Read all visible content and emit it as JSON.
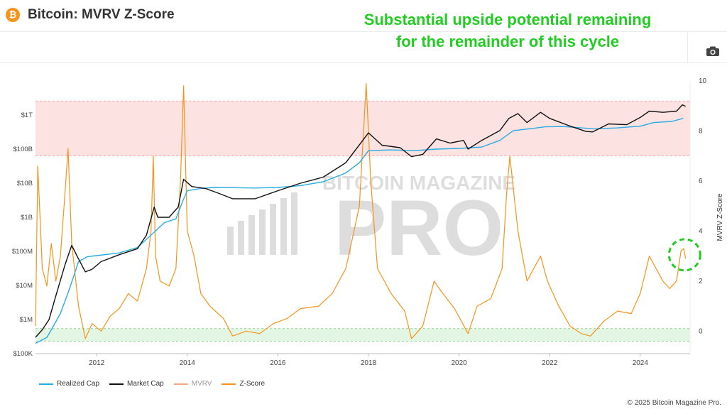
{
  "header": {
    "icon": "bitcoin-icon",
    "icon_glyph": "₿",
    "title": "Bitcoin: MVRV Z-Score"
  },
  "annotation": {
    "line1": "Substantial upside potential remaining",
    "line2": "for the remainder of this cycle",
    "color": "#22cc22"
  },
  "toolbar": {
    "camera_icon": "camera-icon"
  },
  "watermark": {
    "line1": "BITCOIN MAGAZINE",
    "line2": "PRO"
  },
  "chart_data": {
    "type": "line",
    "title": "Bitcoin: MVRV Z-Score",
    "xlabel": "",
    "ylabel_left": "",
    "ylabel_right": "MVRV Z-Score",
    "left_axis": {
      "scale": "log",
      "range": [
        100000,
        10000000000000
      ],
      "ticks": [
        "$100K",
        "$1M",
        "$10M",
        "$100M",
        "$1B",
        "$10B",
        "$100B",
        "$1T"
      ]
    },
    "right_axis": {
      "range": [
        -0.9,
        10
      ],
      "ticks": [
        0,
        2,
        4,
        6,
        8,
        10
      ]
    },
    "x_axis": {
      "range": [
        2010.65,
        2025.1
      ],
      "ticks": [
        "2012",
        "2014",
        "2016",
        "2018",
        "2020",
        "2022",
        "2024"
      ]
    },
    "bands": [
      {
        "name": "overvalued",
        "axis": "right",
        "from": 7,
        "to": 9.2,
        "color": "#fde2e2",
        "border": "#f08080"
      },
      {
        "name": "undervalued",
        "axis": "right",
        "from": -0.4,
        "to": 0.1,
        "color": "#e3f6e3",
        "border": "#66cc66"
      }
    ],
    "series": [
      {
        "name": "Realized Cap",
        "color": "#29abe2",
        "axis": "left",
        "points": [
          [
            2010.65,
            200000
          ],
          [
            2010.9,
            300000
          ],
          [
            2011.0,
            500000
          ],
          [
            2011.2,
            1500000
          ],
          [
            2011.4,
            8000000
          ],
          [
            2011.6,
            50000000
          ],
          [
            2011.8,
            70000000
          ],
          [
            2012.0,
            75000000
          ],
          [
            2012.5,
            90000000
          ],
          [
            2012.9,
            130000000
          ],
          [
            2013.2,
            300000000
          ],
          [
            2013.5,
            700000000
          ],
          [
            2013.75,
            900000000
          ],
          [
            2013.9,
            3000000000
          ],
          [
            2014.0,
            6000000000
          ],
          [
            2014.3,
            7000000000
          ],
          [
            2014.6,
            7500000000
          ],
          [
            2015.0,
            7400000000
          ],
          [
            2015.5,
            7200000000
          ],
          [
            2016.0,
            7500000000
          ],
          [
            2016.5,
            8500000000
          ],
          [
            2017.0,
            11000000000
          ],
          [
            2017.5,
            20000000000
          ],
          [
            2017.8,
            40000000000
          ],
          [
            2018.0,
            90000000000
          ],
          [
            2018.5,
            95000000000
          ],
          [
            2019.0,
            90000000000
          ],
          [
            2019.5,
            100000000000
          ],
          [
            2020.0,
            105000000000
          ],
          [
            2020.5,
            115000000000
          ],
          [
            2020.9,
            180000000000
          ],
          [
            2021.2,
            350000000000
          ],
          [
            2021.6,
            400000000000
          ],
          [
            2021.9,
            450000000000
          ],
          [
            2022.3,
            460000000000
          ],
          [
            2022.7,
            420000000000
          ],
          [
            2023.0,
            390000000000
          ],
          [
            2023.5,
            420000000000
          ],
          [
            2024.0,
            470000000000
          ],
          [
            2024.3,
            600000000000
          ],
          [
            2024.7,
            650000000000
          ],
          [
            2024.95,
            800000000000
          ]
        ]
      },
      {
        "name": "Market Cap",
        "color": "#111111",
        "axis": "left",
        "points": [
          [
            2010.65,
            300000
          ],
          [
            2010.8,
            500000
          ],
          [
            2010.95,
            1000000
          ],
          [
            2011.1,
            5000000
          ],
          [
            2011.3,
            40000000
          ],
          [
            2011.45,
            150000000
          ],
          [
            2011.6,
            60000000
          ],
          [
            2011.75,
            25000000
          ],
          [
            2011.9,
            30000000
          ],
          [
            2012.1,
            50000000
          ],
          [
            2012.5,
            80000000
          ],
          [
            2012.9,
            120000000
          ],
          [
            2013.1,
            300000000
          ],
          [
            2013.27,
            2000000000
          ],
          [
            2013.35,
            1000000000
          ],
          [
            2013.6,
            1000000000
          ],
          [
            2013.8,
            2000000000
          ],
          [
            2013.92,
            13000000000
          ],
          [
            2014.1,
            8000000000
          ],
          [
            2014.4,
            7000000000
          ],
          [
            2014.7,
            5000000000
          ],
          [
            2015.0,
            3500000000
          ],
          [
            2015.5,
            3500000000
          ],
          [
            2016.0,
            6000000000
          ],
          [
            2016.5,
            10000000000
          ],
          [
            2017.0,
            15000000000
          ],
          [
            2017.5,
            40000000000
          ],
          [
            2017.9,
            200000000000
          ],
          [
            2018.0,
            300000000000
          ],
          [
            2018.3,
            130000000000
          ],
          [
            2018.7,
            110000000000
          ],
          [
            2018.95,
            60000000000
          ],
          [
            2019.2,
            70000000000
          ],
          [
            2019.5,
            200000000000
          ],
          [
            2019.8,
            150000000000
          ],
          [
            2020.1,
            180000000000
          ],
          [
            2020.2,
            100000000000
          ],
          [
            2020.5,
            180000000000
          ],
          [
            2020.9,
            350000000000
          ],
          [
            2021.1,
            800000000000
          ],
          [
            2021.3,
            1100000000000
          ],
          [
            2021.5,
            600000000000
          ],
          [
            2021.8,
            1200000000000
          ],
          [
            2022.0,
            800000000000
          ],
          [
            2022.4,
            500000000000
          ],
          [
            2022.8,
            330000000000
          ],
          [
            2022.95,
            320000000000
          ],
          [
            2023.3,
            550000000000
          ],
          [
            2023.7,
            520000000000
          ],
          [
            2024.0,
            850000000000
          ],
          [
            2024.2,
            1300000000000
          ],
          [
            2024.5,
            1200000000000
          ],
          [
            2024.8,
            1300000000000
          ],
          [
            2024.93,
            2000000000000
          ],
          [
            2025.0,
            1800000000000
          ]
        ]
      },
      {
        "name": "MVRV",
        "color": "#f4a582",
        "axis": "left",
        "points": []
      },
      {
        "name": "Z-Score",
        "color": "#f7931a",
        "axis": "right",
        "points": [
          [
            2010.65,
            0.2
          ],
          [
            2010.7,
            6.6
          ],
          [
            2010.8,
            2.5
          ],
          [
            2010.9,
            1.8
          ],
          [
            2011.0,
            3.5
          ],
          [
            2011.1,
            2.0
          ],
          [
            2011.2,
            3.0
          ],
          [
            2011.3,
            5.5
          ],
          [
            2011.37,
            7.3
          ],
          [
            2011.45,
            3.5
          ],
          [
            2011.6,
            1.0
          ],
          [
            2011.75,
            -0.3
          ],
          [
            2011.9,
            0.3
          ],
          [
            2012.1,
            0.0
          ],
          [
            2012.3,
            0.6
          ],
          [
            2012.5,
            0.9
          ],
          [
            2012.7,
            1.5
          ],
          [
            2012.9,
            1.2
          ],
          [
            2013.1,
            2.5
          ],
          [
            2013.2,
            4.0
          ],
          [
            2013.25,
            7.0
          ],
          [
            2013.3,
            3.0
          ],
          [
            2013.4,
            2.0
          ],
          [
            2013.6,
            1.8
          ],
          [
            2013.75,
            2.5
          ],
          [
            2013.85,
            6.0
          ],
          [
            2013.92,
            9.8
          ],
          [
            2014.0,
            4.0
          ],
          [
            2014.15,
            3.0
          ],
          [
            2014.3,
            1.5
          ],
          [
            2014.5,
            1.0
          ],
          [
            2014.8,
            0.5
          ],
          [
            2015.0,
            -0.2
          ],
          [
            2015.3,
            0.0
          ],
          [
            2015.6,
            -0.1
          ],
          [
            2015.9,
            0.3
          ],
          [
            2016.2,
            0.5
          ],
          [
            2016.5,
            0.9
          ],
          [
            2016.9,
            1.0
          ],
          [
            2017.2,
            1.5
          ],
          [
            2017.5,
            2.5
          ],
          [
            2017.8,
            5.0
          ],
          [
            2017.95,
            9.9
          ],
          [
            2018.05,
            6.0
          ],
          [
            2018.2,
            2.5
          ],
          [
            2018.5,
            1.5
          ],
          [
            2018.8,
            0.8
          ],
          [
            2018.95,
            -0.3
          ],
          [
            2019.2,
            0.2
          ],
          [
            2019.45,
            2.0
          ],
          [
            2019.6,
            1.6
          ],
          [
            2019.9,
            0.9
          ],
          [
            2020.2,
            -0.1
          ],
          [
            2020.4,
            1.0
          ],
          [
            2020.7,
            1.3
          ],
          [
            2020.95,
            2.5
          ],
          [
            2021.05,
            5.5
          ],
          [
            2021.12,
            7.0
          ],
          [
            2021.3,
            4.0
          ],
          [
            2021.5,
            2.0
          ],
          [
            2021.8,
            3.0
          ],
          [
            2021.95,
            2.0
          ],
          [
            2022.2,
            1.0
          ],
          [
            2022.45,
            0.2
          ],
          [
            2022.7,
            -0.1
          ],
          [
            2022.9,
            -0.2
          ],
          [
            2023.2,
            0.4
          ],
          [
            2023.5,
            0.8
          ],
          [
            2023.8,
            0.7
          ],
          [
            2024.0,
            1.5
          ],
          [
            2024.2,
            3.0
          ],
          [
            2024.35,
            2.5
          ],
          [
            2024.5,
            2.0
          ],
          [
            2024.65,
            1.7
          ],
          [
            2024.8,
            2.0
          ],
          [
            2024.9,
            3.2
          ],
          [
            2024.96,
            3.3
          ],
          [
            2025.0,
            2.9
          ]
        ]
      }
    ]
  },
  "highlight": {
    "shape": "dashed-circle",
    "color": "#22cc22",
    "center": {
      "x": 2024.98,
      "y": 3.05
    }
  },
  "legend": [
    {
      "label": "Realized Cap",
      "color": "#29abe2"
    },
    {
      "label": "Market Cap",
      "color": "#111111"
    },
    {
      "label": "MVRV",
      "color": "#f4a582"
    },
    {
      "label": "Z-Score",
      "color": "#f7931a"
    }
  ],
  "footer": {
    "copyright": "© 2025 Bitcoin Magazine Pro."
  }
}
